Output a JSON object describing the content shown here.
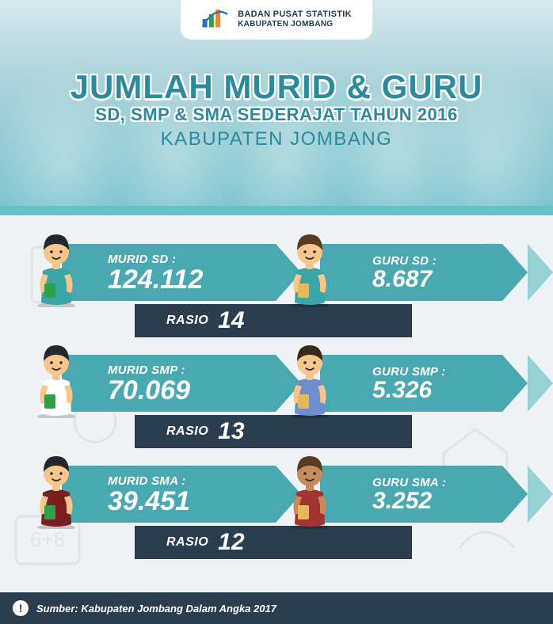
{
  "badge": {
    "line1": "BADAN PUSAT STATISTIK",
    "line2": "KABUPATEN JOMBANG"
  },
  "title": {
    "line1": "JUMLAH MURID & GURU",
    "line2": "SD, SMP & SMA SEDERAJAT TAHUN 2016",
    "line3": "KABUPATEN JOMBANG"
  },
  "colors": {
    "teal": "#4aa8b0",
    "teal_light": "#7ec8cd",
    "navy": "#2b3e50",
    "hero_top": "#d8e9ed",
    "hero_bottom": "#7fc5ce",
    "title_color": "#2b8a9e",
    "title_stroke": "#ffffff"
  },
  "rows": [
    {
      "level": "SD",
      "murid_label": "MURID SD :",
      "murid_value": "124.112",
      "guru_label": "GURU SD :",
      "guru_value": "8.687",
      "rasio_label": "RASIO",
      "rasio_value": "14",
      "student_colors": {
        "hair": "#22292e",
        "skin": "#f6c68c",
        "shirt": "#3aa6a6"
      },
      "teacher_colors": {
        "hair": "#5a3b22",
        "skin": "#f6c68c",
        "shirt": "#3aa6a6"
      }
    },
    {
      "level": "SMP",
      "murid_label": "MURID SMP :",
      "murid_value": "70.069",
      "guru_label": "GURU SMP :",
      "guru_value": "5.326",
      "rasio_label": "RASIO",
      "rasio_value": "13",
      "student_colors": {
        "hair": "#22292e",
        "skin": "#f6c68c",
        "shirt": "#ffffff"
      },
      "teacher_colors": {
        "hair": "#3a2a1a",
        "skin": "#f6c68c",
        "shirt": "#6d8ecf"
      }
    },
    {
      "level": "SMA",
      "murid_label": "MURID SMA :",
      "murid_value": "39.451",
      "guru_label": "GURU SMA :",
      "guru_value": "3.252",
      "rasio_label": "RASIO",
      "rasio_value": "12",
      "student_colors": {
        "hair": "#22292e",
        "skin": "#f6c68c",
        "shirt": "#7a1f1f"
      },
      "teacher_colors": {
        "hair": "#5a3b22",
        "skin": "#c68b5a",
        "shirt": "#a23333"
      }
    }
  ],
  "footer": {
    "source": "Sumber: Kabupaten Jombang Dalam Angka 2017"
  }
}
